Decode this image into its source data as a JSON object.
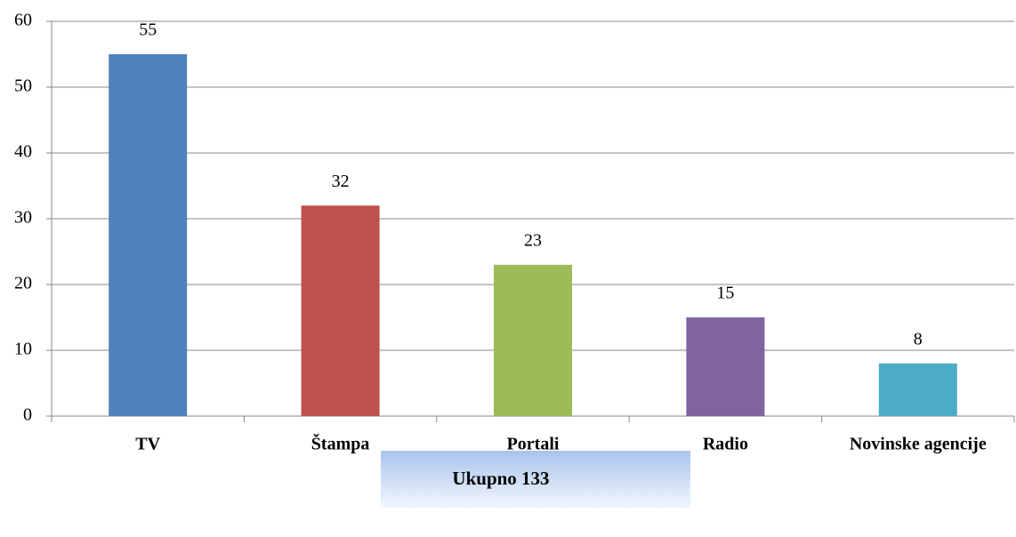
{
  "chart_data": {
    "type": "bar",
    "categories": [
      "TV",
      "Štampa",
      "Portali",
      "Radio",
      "Novinske agencije"
    ],
    "values": [
      55,
      32,
      23,
      15,
      8
    ],
    "colors": [
      "#4f81bd",
      "#c0504d",
      "#9bbb59",
      "#8064a2",
      "#4bacc6"
    ],
    "ylim": [
      0,
      60
    ],
    "yticks": [
      0,
      10,
      20,
      30,
      40,
      50,
      60
    ],
    "grid": true,
    "annotation": "Ukupno 133"
  }
}
